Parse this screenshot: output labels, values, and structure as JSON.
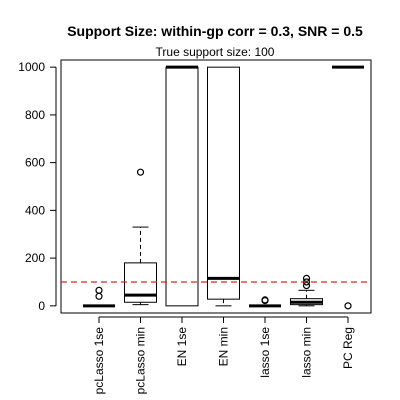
{
  "chart_data": {
    "type": "boxplot",
    "title": "Support Size: within-gp corr = 0.3, SNR = 0.5",
    "subtitle": "True support size: 100",
    "xlabel": "",
    "ylabel": "",
    "ylim": [
      -30,
      1030
    ],
    "yticks": [
      0,
      200,
      400,
      600,
      800,
      1000
    ],
    "reference_line": {
      "y": 100,
      "color": "#d62728",
      "style": "dashed"
    },
    "categories": [
      "pcLasso 1se",
      "pcLasso min",
      "EN 1se",
      "EN min",
      "lasso 1se",
      "lasso min",
      "PC Reg"
    ],
    "boxes": [
      {
        "name": "pcLasso 1se",
        "whisker_low": 0,
        "q1": 0,
        "median": 0,
        "q3": 0,
        "whisker_high": 0,
        "outliers": [
          40,
          65
        ]
      },
      {
        "name": "pcLasso min",
        "whisker_low": 5,
        "q1": 15,
        "median": 45,
        "q3": 180,
        "whisker_high": 330,
        "outliers": [
          560
        ]
      },
      {
        "name": "EN 1se",
        "whisker_low": 0,
        "q1": 0,
        "median": 1000,
        "q3": 1000,
        "whisker_high": 1000,
        "outliers": []
      },
      {
        "name": "EN min",
        "whisker_low": 0,
        "q1": 28,
        "median": 115,
        "q3": 1000,
        "whisker_high": 1000,
        "outliers": []
      },
      {
        "name": "lasso 1se",
        "whisker_low": 0,
        "q1": 0,
        "median": 0,
        "q3": 0,
        "whisker_high": 0,
        "outliers": [
          22,
          25
        ]
      },
      {
        "name": "lasso min",
        "whisker_low": 0,
        "q1": 5,
        "median": 15,
        "q3": 30,
        "whisker_high": 65,
        "outliers": [
          85,
          100,
          115
        ]
      },
      {
        "name": "PC Reg",
        "whisker_low": 1000,
        "q1": 1000,
        "median": 1000,
        "q3": 1000,
        "whisker_high": 1000,
        "outliers": [
          0
        ]
      }
    ],
    "colors": {
      "box": "#000000",
      "reference": "#d62728",
      "background": "#ffffff"
    },
    "grid": false
  }
}
